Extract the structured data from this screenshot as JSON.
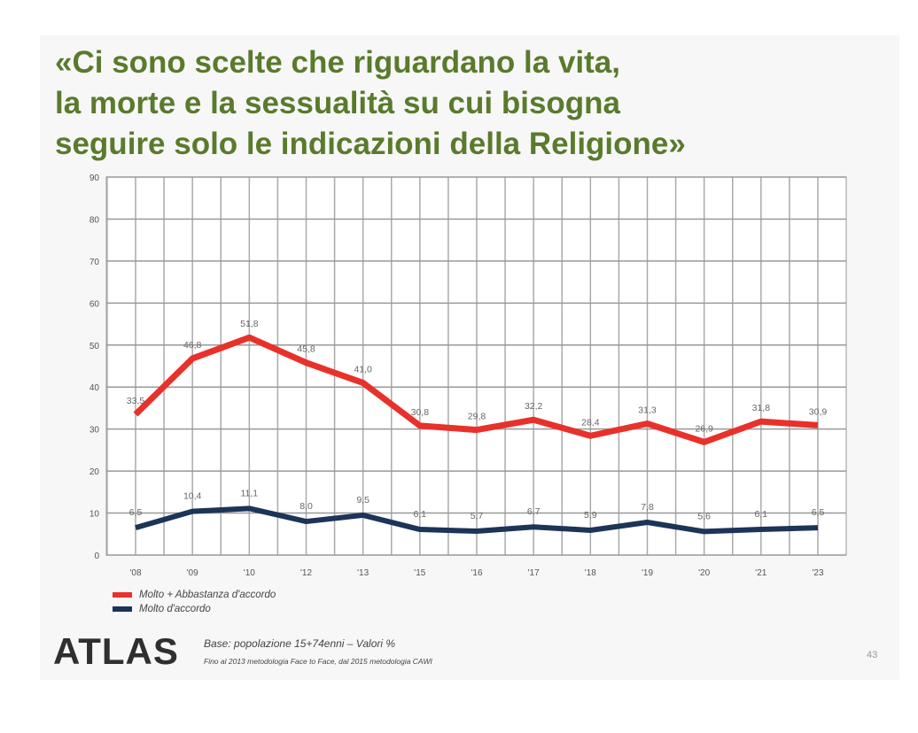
{
  "slide": {
    "title_lines": [
      "«Ci sono scelte che riguardano la vita,",
      "la morte e la sessualità su cui bisogna",
      "seguire solo le indicazioni  della Religione»"
    ],
    "logo": "ATLAS",
    "base": "Base: popolazione 15+74enni – Valori %",
    "method": "Fino al 2013 metodologia  Face to Face, dal 2015 metodologia  CAWI",
    "page_number": "43"
  },
  "chart_data": {
    "type": "line",
    "title": "",
    "xlabel": "",
    "ylabel": "",
    "categories": [
      "'08",
      "'09",
      "'10",
      "'12",
      "'13",
      "'15",
      "'16",
      "'17",
      "'18",
      "'19",
      "'20",
      "'21",
      "'23"
    ],
    "ylim": [
      0,
      90
    ],
    "yticks": [
      0,
      10,
      20,
      30,
      40,
      50,
      60,
      70,
      80,
      90
    ],
    "grid": true,
    "legend_position": "bottom-left",
    "series": [
      {
        "name": "Molto + Abbastanza  d'accordo",
        "color": "#e8312a",
        "values": [
          33.5,
          46.8,
          51.8,
          45.8,
          41.0,
          30.8,
          29.8,
          32.2,
          28.4,
          31.3,
          26.9,
          31.8,
          30.9
        ],
        "labels": [
          "33,5",
          "46,8",
          "51,8",
          "45,8",
          "41,0",
          "30,8",
          "29,8",
          "32,2",
          "28,4",
          "31,3",
          "26,9",
          "31,8",
          "30,9"
        ]
      },
      {
        "name": "Molto d'accordo",
        "color": "#1c3458",
        "values": [
          6.5,
          10.4,
          11.1,
          8.0,
          9.5,
          6.1,
          5.7,
          6.7,
          5.9,
          7.8,
          5.6,
          6.1,
          6.5
        ],
        "labels": [
          "6,5",
          "10,4",
          "11,1",
          "8,0",
          "9,5",
          "6,1",
          "5,7",
          "6,7",
          "5,9",
          "7,8",
          "5,6",
          "6,1",
          "6,5"
        ]
      }
    ]
  }
}
